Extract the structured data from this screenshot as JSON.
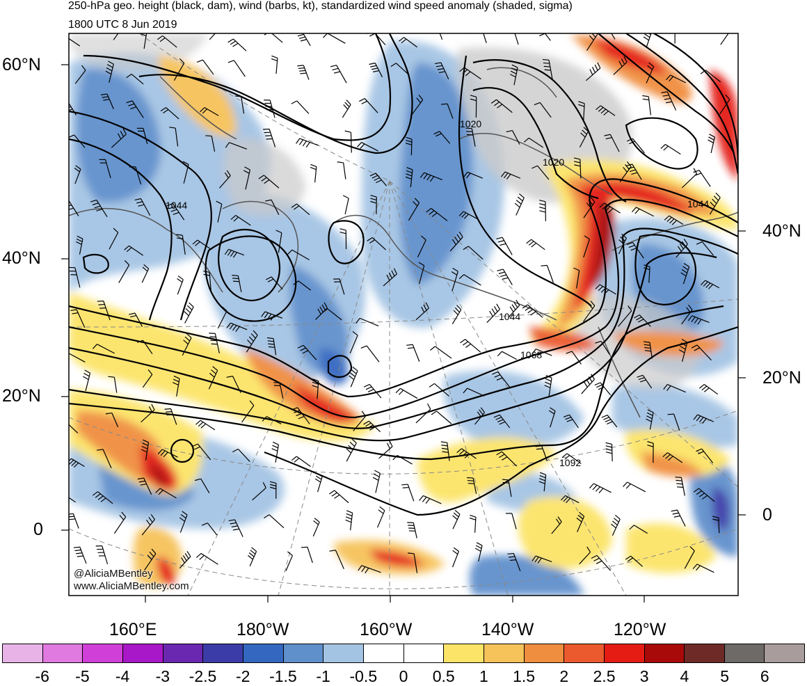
{
  "title": {
    "line1": "250-hPa geo. height (black, dam), wind (barbs, kt), standardized wind speed anomaly (shaded, sigma)",
    "line2": "1800 UTC 8 Jun 2019"
  },
  "map": {
    "lat_labels_left": [
      "60°N",
      "40°N",
      "20°N",
      "0"
    ],
    "lat_labels_right": [
      "40°N",
      "20°N",
      "0"
    ],
    "lon_labels": [
      "160°E",
      "180°W",
      "160°W",
      "140°W",
      "120°W"
    ],
    "contour_labels": [
      "1044",
      "1020",
      "1020",
      "1044",
      "1044",
      "1068",
      "1092"
    ],
    "credit_handle": "@AliciaMBentley",
    "credit_url": "www.AliciaMBentley.com"
  },
  "colorbar": {
    "colors": [
      "#e8b4e8",
      "#e07ae0",
      "#d040d8",
      "#a818c8",
      "#6a28b0",
      "#3c3ca8",
      "#3468c0",
      "#6090cc",
      "#a4c4e4",
      "#ffffff",
      "#ffffff",
      "#fce468",
      "#f6c25a",
      "#f08e40",
      "#ea5a2e",
      "#e41c14",
      "#a80a0a",
      "#6e2a26",
      "#6e6a68",
      "#a89c9c"
    ],
    "labels": [
      "-6",
      "-5",
      "-4",
      "-3",
      "-2.5",
      "-2",
      "-1.5",
      "-1",
      "-0.5",
      "0",
      "0.5",
      "1",
      "1.5",
      "2",
      "2.5",
      "3",
      "4",
      "5",
      "6"
    ]
  }
}
